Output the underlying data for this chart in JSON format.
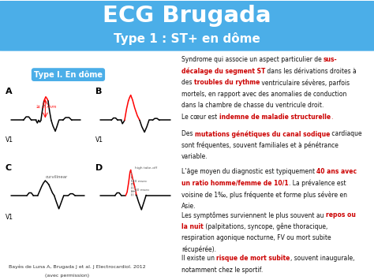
{
  "title": "ECG Brugada",
  "subtitle": "Type 1 : ST+ en dôme",
  "header_bg": "#4BAEE8",
  "header_text_color": "#FFFFFF",
  "body_bg": "#FFFFFF",
  "label_box_text": "Type I. En dôme",
  "label_box_bg": "#4BAEE8",
  "label_box_text_color": "#FFFFFF",
  "citation_line1": "Bayès de Luna A, Brugada J et al. J Electrocardiol. 2012",
  "citation_line2": "(avec permission)",
  "para1_lines": [
    [
      {
        "t": "Syndrome qui associe un aspect particulier de ",
        "c": "#111111",
        "b": false
      },
      {
        "t": "sus-",
        "c": "#CC0000",
        "b": true
      }
    ],
    [
      {
        "t": "décalage du segment ST",
        "c": "#CC0000",
        "b": true
      },
      {
        "t": " dans les dérivations droites à",
        "c": "#111111",
        "b": false
      }
    ],
    [
      {
        "t": "des ",
        "c": "#111111",
        "b": false
      },
      {
        "t": "troubles du rythme",
        "c": "#CC0000",
        "b": true
      },
      {
        "t": " ventriculaire sévères, parfois",
        "c": "#111111",
        "b": false
      }
    ],
    [
      {
        "t": "mortels, en rapport avec des anomalies de conduction",
        "c": "#111111",
        "b": false
      }
    ],
    [
      {
        "t": "dans la chambre de chasse du ventricule droit.",
        "c": "#111111",
        "b": false
      }
    ]
  ],
  "para2_lines": [
    [
      {
        "t": "Le cœur est ",
        "c": "#111111",
        "b": false
      },
      {
        "t": "indemne de maladie structurelle",
        "c": "#CC0000",
        "b": true
      },
      {
        "t": ".",
        "c": "#CC0000",
        "b": false
      }
    ]
  ],
  "para3_lines": [
    [
      {
        "t": "Des ",
        "c": "#111111",
        "b": false
      },
      {
        "t": "mutations génétiques du canal sodique",
        "c": "#CC0000",
        "b": true
      },
      {
        "t": " cardiaque",
        "c": "#111111",
        "b": false
      }
    ],
    [
      {
        "t": "sont fréquentes, souvent familiales et à pénétrance",
        "c": "#111111",
        "b": false
      }
    ],
    [
      {
        "t": "variable.",
        "c": "#111111",
        "b": false
      }
    ]
  ],
  "para4_lines": [
    [
      {
        "t": "L’âge moyen du diagnostic est typiquement ",
        "c": "#111111",
        "b": false
      },
      {
        "t": "40 ans avec",
        "c": "#CC0000",
        "b": true
      }
    ],
    [
      {
        "t": "un ratio homme/femme de 10/1",
        "c": "#CC0000",
        "b": true
      },
      {
        "t": ". La prévalence est",
        "c": "#111111",
        "b": false
      }
    ],
    [
      {
        "t": "voisine de 1‰, plus fréquente et forme plus sévère en",
        "c": "#111111",
        "b": false
      }
    ],
    [
      {
        "t": "Asie.",
        "c": "#111111",
        "b": false
      }
    ]
  ],
  "para5_lines": [
    [
      {
        "t": "Les symptômes surviennent le plus souvent au ",
        "c": "#111111",
        "b": false
      },
      {
        "t": "repos ou",
        "c": "#CC0000",
        "b": true
      }
    ],
    [
      {
        "t": "la nuit",
        "c": "#CC0000",
        "b": true
      },
      {
        "t": " (palpitations, syncope, gêne thoracique,",
        "c": "#111111",
        "b": false
      }
    ],
    [
      {
        "t": "respiration agonique nocturne, FV ou mort subite",
        "c": "#111111",
        "b": false
      }
    ],
    [
      {
        "t": "récupérée).",
        "c": "#111111",
        "b": false
      }
    ]
  ],
  "para6_lines": [
    [
      {
        "t": "Il existe un ",
        "c": "#111111",
        "b": false
      },
      {
        "t": "risque de mort subite",
        "c": "#CC0000",
        "b": true
      },
      {
        "t": ", souvent inaugurale,",
        "c": "#111111",
        "b": false
      }
    ],
    [
      {
        "t": "notamment chez le sportif.",
        "c": "#111111",
        "b": false
      }
    ]
  ]
}
